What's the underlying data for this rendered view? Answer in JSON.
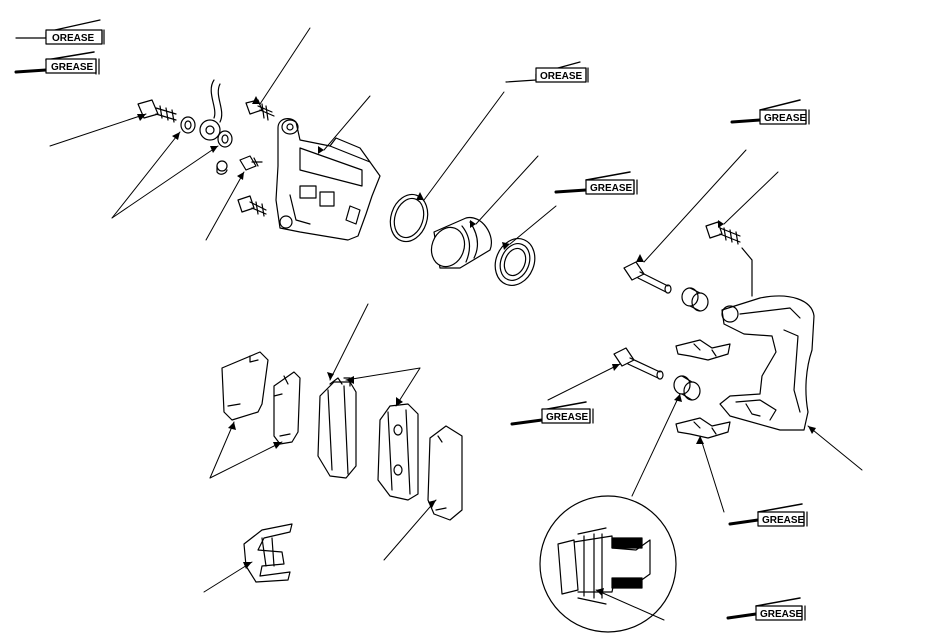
{
  "diagram": {
    "grease_label": "GREASE",
    "grease_label_alt": "OREASE",
    "line_color": "#000000",
    "background_color": "#ffffff",
    "legend": {
      "light_grease_icon": "grease-tube-light-icon",
      "dark_grease_icon": "grease-tube-dark-icon"
    }
  }
}
